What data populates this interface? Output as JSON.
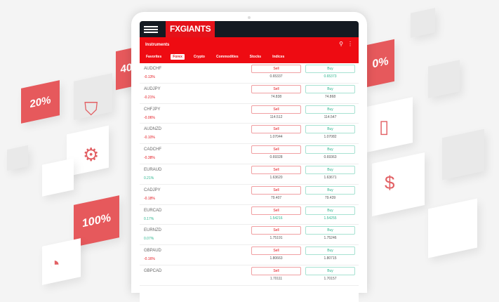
{
  "background": {
    "tiles": [
      "20%",
      "40",
      "100%",
      "0%"
    ]
  },
  "header": {
    "logo": "FXGIANTS",
    "title": "Instruments"
  },
  "tabs": [
    {
      "label": "Favorites",
      "active": false
    },
    {
      "label": "Forex",
      "active": true
    },
    {
      "label": "Crypto",
      "active": false
    },
    {
      "label": "Commodities",
      "active": false
    },
    {
      "label": "Stocks",
      "active": false
    },
    {
      "label": "Indices",
      "active": false
    }
  ],
  "sell_label": "Sell",
  "buy_label": "Buy",
  "rows": [
    {
      "symbol": "AUDCHF",
      "change": "-0.13%",
      "dir": "neg",
      "sell": "0.65337",
      "buy": "0.65373",
      "buyColor": "pos"
    },
    {
      "symbol": "AUDJPY",
      "change": "-0.21%",
      "dir": "neg",
      "sell": "74.838",
      "buy": "74.868"
    },
    {
      "symbol": "CHFJPY",
      "change": "-0.06%",
      "dir": "neg",
      "sell": "114.512",
      "buy": "114.547"
    },
    {
      "symbol": "AUDNZD",
      "change": "-0.10%",
      "dir": "neg",
      "sell": "1.07044",
      "buy": "1.07082"
    },
    {
      "symbol": "CADCHF",
      "change": "-0.38%",
      "dir": "neg",
      "sell": "0.69328",
      "buy": "0.69363"
    },
    {
      "symbol": "EURAUD",
      "change": "0.21%",
      "dir": "pos",
      "sell": "1.63620",
      "buy": "1.63671"
    },
    {
      "symbol": "CADJPY",
      "change": "-0.18%",
      "dir": "neg",
      "sell": "79.407",
      "buy": "79.439"
    },
    {
      "symbol": "EURCAD",
      "change": "0.17%",
      "dir": "pos",
      "sell": "1.54216",
      "buy": "1.54255",
      "sellColor": "pos",
      "buyColor": "pos"
    },
    {
      "symbol": "EURNZD",
      "change": "0.07%",
      "dir": "pos",
      "sell": "1.75191",
      "buy": "1.75246"
    },
    {
      "symbol": "GBPAUD",
      "change": "-0.16%",
      "dir": "neg",
      "sell": "1.80663",
      "buy": "1.80715"
    },
    {
      "symbol": "GBPCAD",
      "change": "",
      "dir": "neg",
      "sell": "1.70111",
      "buy": "1.70157"
    }
  ],
  "colors": {
    "brand": "#e4121a",
    "sell": "#e4121a",
    "buy": "#2bb58e",
    "topbar": "#141a22"
  }
}
